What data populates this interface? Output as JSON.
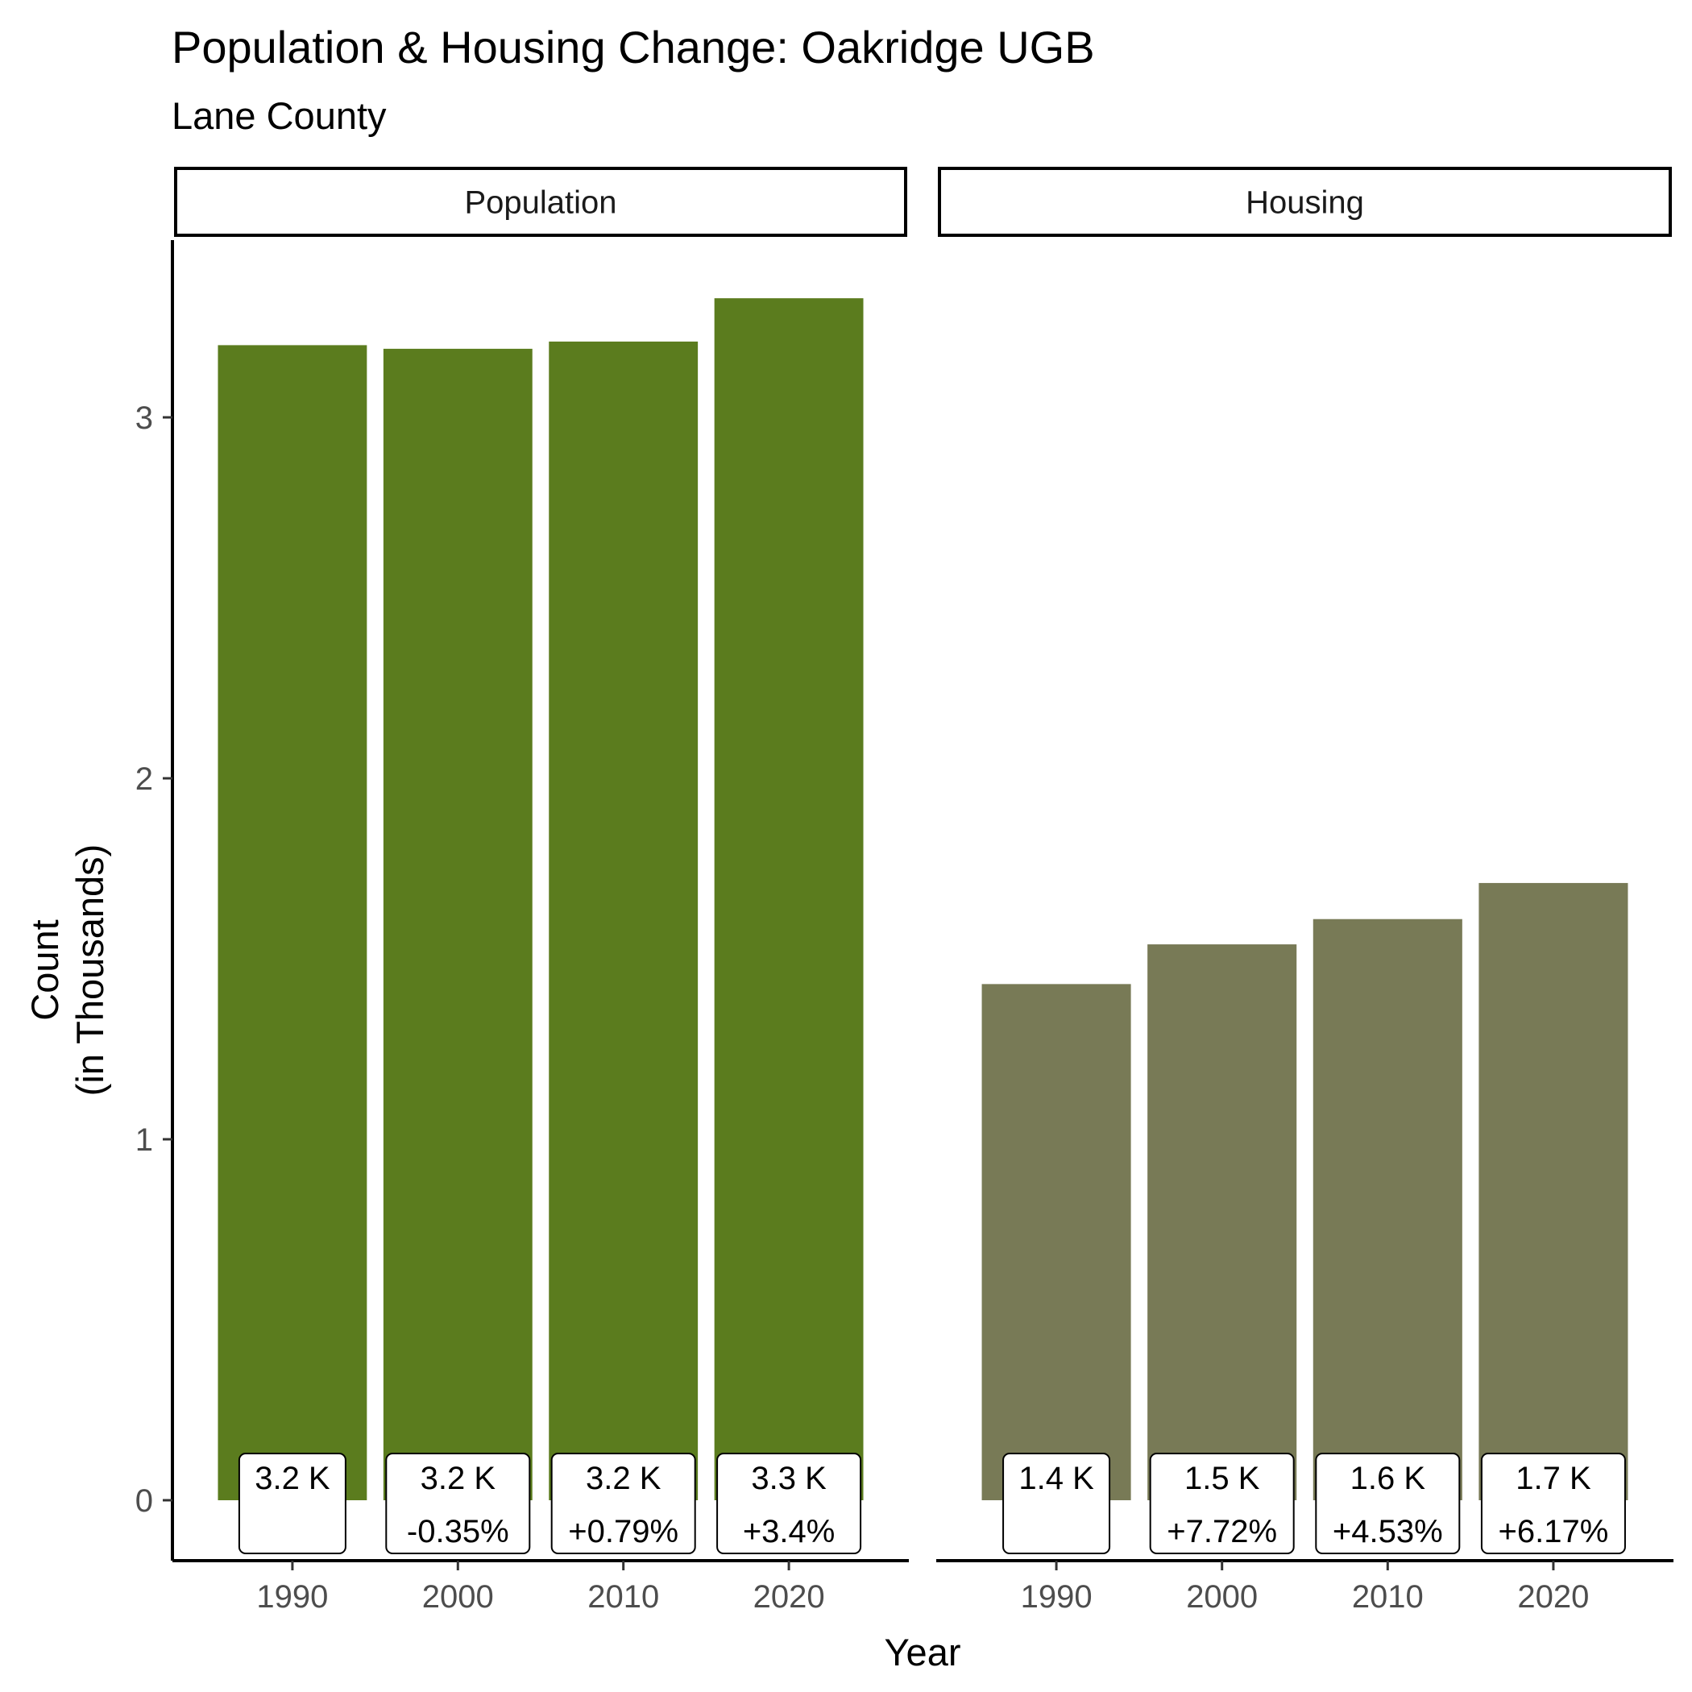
{
  "chart_data": {
    "type": "bar",
    "title": "Population & Housing Change: Oakridge UGB",
    "subtitle": "Lane County",
    "xlabel": "Year",
    "ylabel_line1": "Count",
    "ylabel_line2": "(in Thousands)",
    "ylim": [
      0,
      3.5
    ],
    "yticks": [
      "0",
      "1",
      "2",
      "3"
    ],
    "categories": [
      "1990",
      "2000",
      "2010",
      "2020"
    ],
    "panels": [
      {
        "name": "Population",
        "color": "#5b7c1e",
        "values": [
          3.2,
          3.19,
          3.21,
          3.33
        ],
        "labels": [
          "3.2 K",
          "3.2 K",
          "3.2 K",
          "3.3 K"
        ],
        "changes": [
          "",
          "-0.35%",
          "+0.79%",
          "+3.4%"
        ]
      },
      {
        "name": "Housing",
        "color": "#787a56",
        "values": [
          1.43,
          1.54,
          1.61,
          1.71
        ],
        "labels": [
          "1.4 K",
          "1.5 K",
          "1.6 K",
          "1.7 K"
        ],
        "changes": [
          "",
          "+7.72%",
          "+4.53%",
          "+6.17%"
        ]
      }
    ]
  }
}
